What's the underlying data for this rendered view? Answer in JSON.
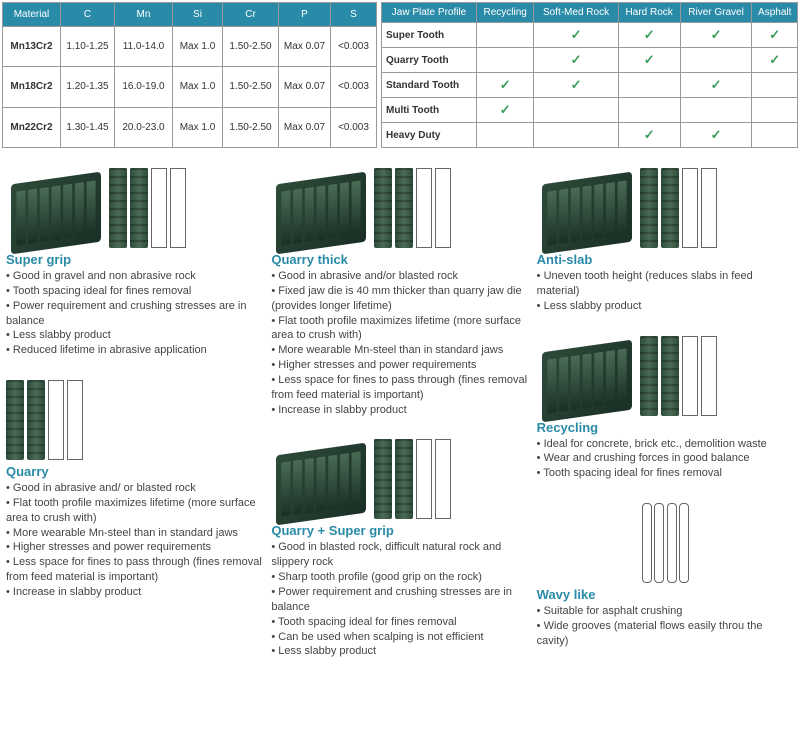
{
  "material_table": {
    "columns": [
      "Material",
      "C",
      "Mn",
      "Si",
      "Cr",
      "P",
      "S"
    ],
    "rows": [
      [
        "Mn13Cr2",
        "1.10-1.25",
        "11.0-14.0",
        "Max 1.0",
        "1.50-2.50",
        "Max 0.07",
        "<0.003"
      ],
      [
        "Mn18Cr2",
        "1.20-1.35",
        "16.0-19.0",
        "Max 1.0",
        "1.50-2.50",
        "Max 0.07",
        "<0.003"
      ],
      [
        "Mn22Cr2",
        "1.30-1.45",
        "20.0-23.0",
        "Max 1.0",
        "1.50-2.50",
        "Max 0.07",
        "<0.003"
      ]
    ],
    "header_bg": "#2a8ba8",
    "col_widths": [
      "58px",
      "54px",
      "58px",
      "50px",
      "56px",
      "52px",
      "46px"
    ]
  },
  "jaw_table": {
    "columns": [
      "Jaw Plate Profile",
      "Recycling",
      "Soft-Med Rock",
      "Hard Rock",
      "River Gravel",
      "Asphalt"
    ],
    "rows": [
      {
        "label": "Super Tooth",
        "checks": [
          false,
          true,
          true,
          true,
          true
        ]
      },
      {
        "label": "Quarry Tooth",
        "checks": [
          false,
          true,
          true,
          false,
          true
        ]
      },
      {
        "label": "Standard Tooth",
        "checks": [
          true,
          true,
          false,
          true,
          false
        ]
      },
      {
        "label": "Multi Tooth",
        "checks": [
          true,
          false,
          false,
          false,
          false
        ]
      },
      {
        "label": "Heavy Duty",
        "checks": [
          false,
          false,
          true,
          true,
          false
        ]
      }
    ],
    "check_color": "#3a9c5a"
  },
  "products": {
    "super_grip": {
      "title": "Super grip",
      "bullets": [
        "Good in gravel and non abrasive rock",
        "Tooth spacing ideal for fines removal",
        "Power requirement and crushing stresses are in balance",
        "Less slabby product",
        "Reduced lifetime in abrasive application"
      ]
    },
    "quarry": {
      "title": "Quarry",
      "bullets": [
        "Good in abrasive and/ or blasted rock",
        "Flat tooth profile maximizes lifetime (more surface area to crush with)",
        "More wearable Mn-steel than in standard jaws",
        "Higher stresses and power requirements",
        "Less space for fines to pass through (fines removal from feed material is important)",
        "Increase in slabby product"
      ]
    },
    "quarry_thick": {
      "title": "Quarry thick",
      "bullets": [
        "Good in abrasive and/or blasted rock",
        "Fixed jaw die is 40 mm thicker than quarry jaw die (provides longer lifetime)",
        "Flat tooth profile maximizes lifetime (more surface area to crush with)",
        "More wearable Mn-steel than in standard jaws",
        "Higher stresses and power requirements",
        "Less space for fines to pass through (fines removal from feed material is important)",
        "Increase in slabby product"
      ]
    },
    "quarry_super_grip": {
      "title": "Quarry + Super grip",
      "bullets": [
        "Good in blasted rock, difficult natural rock and slippery rock",
        "Sharp tooth profile (good grip on the rock)",
        "Power requirement and crushing stresses are in balance",
        "Tooth spacing ideal for fines removal",
        "Can be used when scalping is not efficient",
        "Less slabby product"
      ]
    },
    "anti_slab": {
      "title": "Anti-slab",
      "bullets": [
        "Uneven tooth height (reduces slabs in feed material)",
        "Less slabby product"
      ]
    },
    "recycling": {
      "title": "Recycling",
      "bullets": [
        "Ideal for concrete, brick etc., demolition waste",
        "Wear and crushing forces in good balance",
        "Tooth spacing ideal for fines removal"
      ]
    },
    "wavy_like": {
      "title": "Wavy like",
      "bullets": [
        "Suitable for asphalt crushing",
        "Wide grooves (material flows easily throu the cavity)"
      ]
    }
  },
  "colors": {
    "accent": "#2a8ba8",
    "plate_dark": "#2d4a3a",
    "plate_light": "#4a6b55",
    "text": "#444444"
  }
}
